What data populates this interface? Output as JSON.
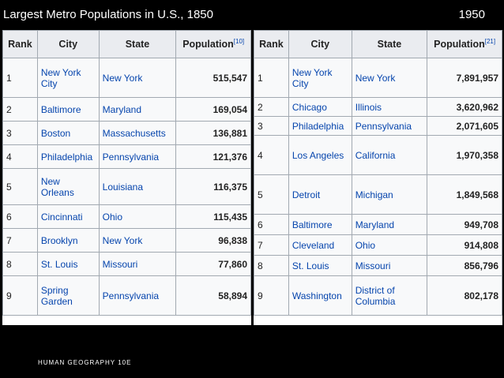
{
  "header": {
    "title": "Largest Metro Populations in U.S., 1850",
    "right_label": "1950"
  },
  "footer": {
    "text": "HUMAN GEOGRAPHY 10E"
  },
  "table_1850": {
    "columns": [
      "Rank",
      "City",
      "State",
      "Population"
    ],
    "population_ref": "[10]",
    "rows": [
      {
        "rank": "1",
        "city": "New York City",
        "state": "New York",
        "population": "515,547"
      },
      {
        "rank": "2",
        "city": "Baltimore",
        "state": "Maryland",
        "population": "169,054"
      },
      {
        "rank": "3",
        "city": "Boston",
        "state": "Massachusetts",
        "population": "136,881"
      },
      {
        "rank": "4",
        "city": "Philadelphia",
        "state": "Pennsylvania",
        "population": "121,376"
      },
      {
        "rank": "5",
        "city": "New Orleans",
        "state": "Louisiana",
        "population": "116,375"
      },
      {
        "rank": "6",
        "city": "Cincinnati",
        "state": "Ohio",
        "population": "115,435"
      },
      {
        "rank": "7",
        "city": "Brooklyn",
        "state": "New York",
        "population": "96,838"
      },
      {
        "rank": "8",
        "city": "St. Louis",
        "state": "Missouri",
        "population": "77,860"
      },
      {
        "rank": "9",
        "city": "Spring Garden",
        "state": "Pennsylvania",
        "population": "58,894"
      }
    ]
  },
  "table_1950": {
    "columns": [
      "Rank",
      "City",
      "State",
      "Population"
    ],
    "population_ref": "[21]",
    "rows": [
      {
        "rank": "1",
        "city": "New York City",
        "state": "New York",
        "population": "7,891,957"
      },
      {
        "rank": "2",
        "city": "Chicago",
        "state": "Illinois",
        "population": "3,620,962"
      },
      {
        "rank": "3",
        "city": "Philadelphia",
        "state": "Pennsylvania",
        "population": "2,071,605"
      },
      {
        "rank": "4",
        "city": "Los Angeles",
        "state": "California",
        "population": "1,970,358"
      },
      {
        "rank": "5",
        "city": "Detroit",
        "state": "Michigan",
        "population": "1,849,568"
      },
      {
        "rank": "6",
        "city": "Baltimore",
        "state": "Maryland",
        "population": "949,708"
      },
      {
        "rank": "7",
        "city": "Cleveland",
        "state": "Ohio",
        "population": "914,808"
      },
      {
        "rank": "8",
        "city": "St. Louis",
        "state": "Missouri",
        "population": "856,796"
      },
      {
        "rank": "9",
        "city": "Washington",
        "state": "District of Columbia",
        "population": "802,178"
      }
    ]
  }
}
